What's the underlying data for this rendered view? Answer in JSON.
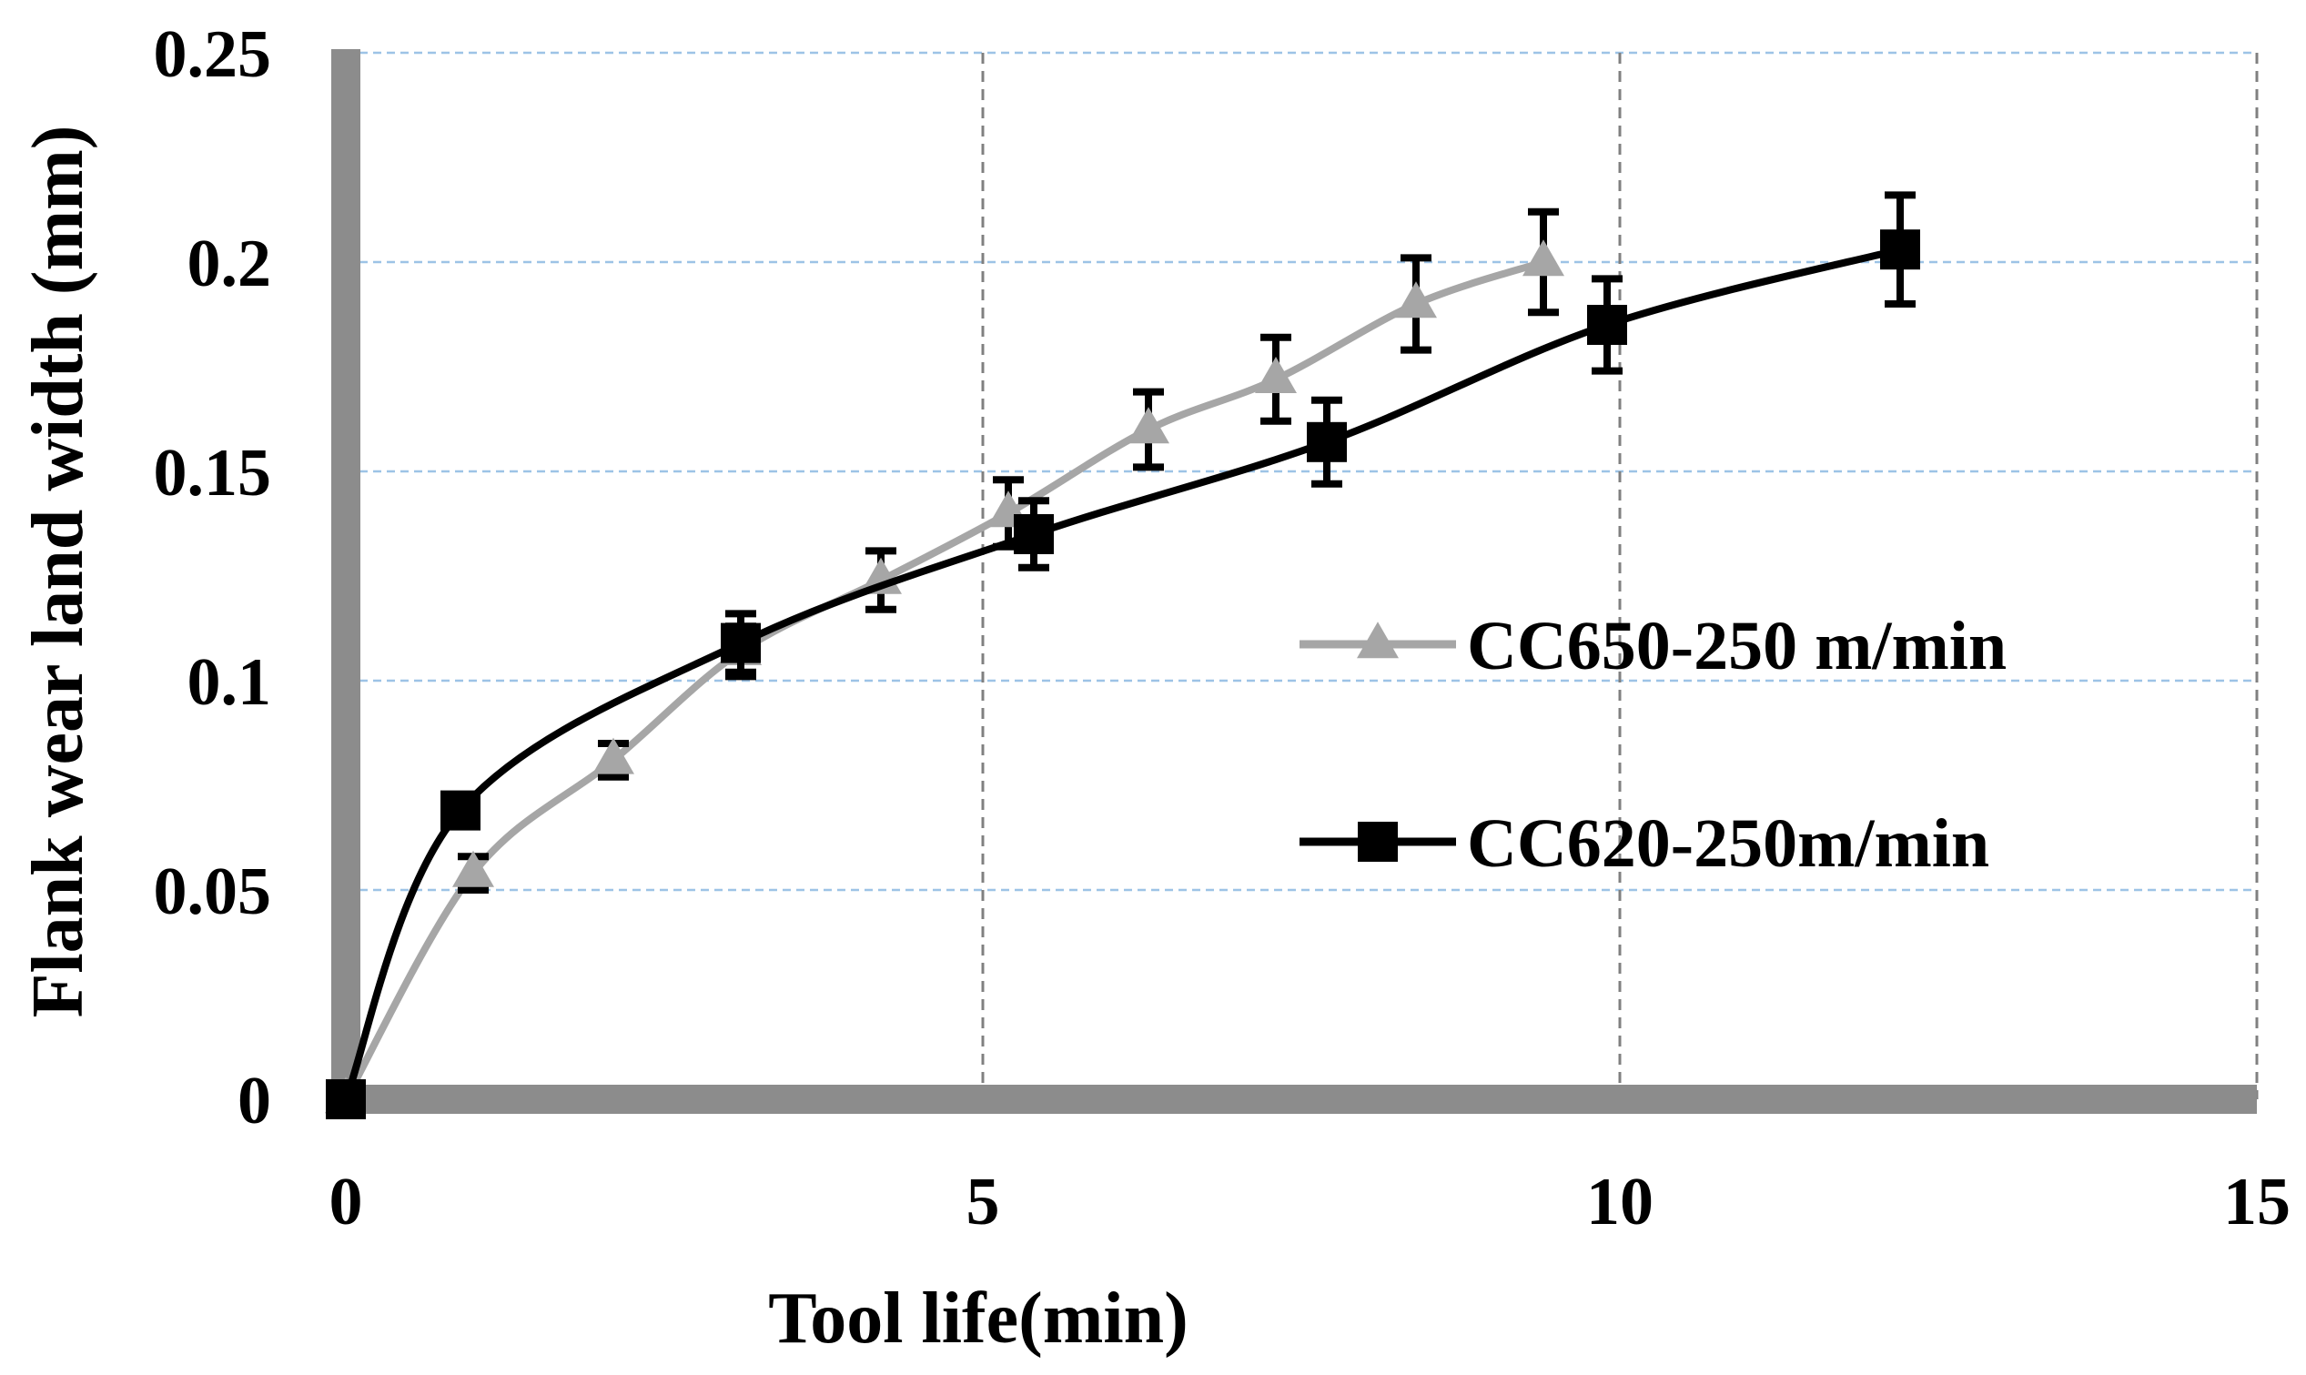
{
  "chart_data": {
    "type": "line",
    "title": "",
    "xlabel": "Tool life(min)",
    "ylabel": "Flank wear land width (mm)",
    "xlim": [
      0,
      15
    ],
    "ylim": [
      0,
      0.25
    ],
    "x_ticks": [
      0,
      5,
      10,
      15
    ],
    "x_tick_labels": [
      "0",
      "5",
      "10",
      "15"
    ],
    "y_ticks": [
      0,
      0.05,
      0.1,
      0.15,
      0.2,
      0.25
    ],
    "y_tick_labels": [
      "0",
      "0.05",
      "0.1",
      "0.15",
      "0.2",
      "0.25"
    ],
    "x_grid": "dashed gray",
    "y_grid": "dashed light blue",
    "legend_position": "right-center",
    "series": [
      {
        "name": "CC650-250 m/min",
        "color": "#a6a6a6",
        "marker": "triangle",
        "x": [
          0,
          1.0,
          2.1,
          3.1,
          4.2,
          5.2,
          6.3,
          7.3,
          8.4,
          9.4
        ],
        "y": [
          0,
          0.054,
          0.081,
          0.107,
          0.124,
          0.14,
          0.16,
          0.172,
          0.19,
          0.2
        ],
        "error": [
          0,
          0.004,
          0.004,
          0.006,
          0.007,
          0.008,
          0.009,
          0.01,
          0.011,
          0.012
        ]
      },
      {
        "name": "CC620-250m/min",
        "color": "#000000",
        "marker": "square",
        "x": [
          0,
          0.9,
          3.1,
          5.4,
          7.7,
          9.9,
          12.2
        ],
        "y": [
          0,
          0.069,
          0.109,
          0.135,
          0.157,
          0.185,
          0.203
        ],
        "error": [
          0,
          0.0,
          0.007,
          0.008,
          0.01,
          0.011,
          0.013
        ]
      }
    ]
  },
  "colors": {
    "axis_line": "#8c8c8c",
    "x_grid": "#808080",
    "y_grid": "#9dc3e6"
  }
}
